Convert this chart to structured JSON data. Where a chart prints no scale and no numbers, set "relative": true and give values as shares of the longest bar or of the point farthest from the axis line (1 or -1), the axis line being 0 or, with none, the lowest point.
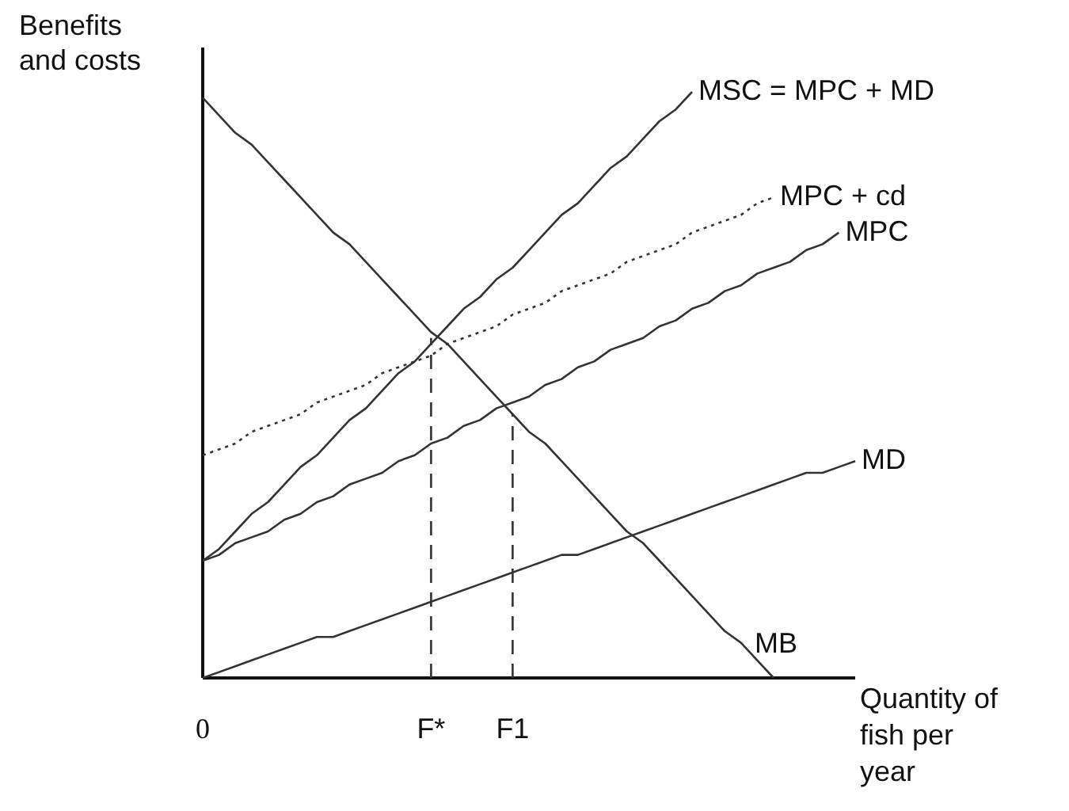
{
  "chart_data": {
    "type": "line",
    "relative": true,
    "xlabel": "Quantity of fish per year",
    "ylabel": "Benefits and costs",
    "categories": [
      "0",
      null,
      null,
      null,
      null,
      null,
      null,
      null,
      null,
      null,
      null,
      null,
      null,
      null,
      "F*",
      null,
      null,
      null,
      null,
      "F1",
      null,
      null,
      null,
      null,
      null,
      null,
      null,
      null,
      null,
      null,
      null,
      null,
      null,
      null,
      null,
      null,
      null,
      null,
      null,
      null,
      null
    ],
    "series": [
      {
        "name": "MB",
        "color": "#333333",
        "values": [
          0.99,
          0.96,
          0.93,
          0.91,
          0.88,
          0.85,
          0.82,
          0.79,
          0.76,
          0.74,
          0.71,
          0.68,
          0.65,
          0.62,
          0.59,
          0.57,
          0.54,
          0.51,
          0.48,
          0.45,
          0.42,
          0.4,
          0.37,
          0.34,
          0.31,
          0.28,
          0.25,
          0.23,
          0.2,
          0.17,
          0.14,
          0.11,
          0.08,
          0.06,
          0.03,
          0,
          null,
          null,
          null,
          null,
          null
        ]
      },
      {
        "name": "MSC = MPC + MD",
        "color": "#333333",
        "values": [
          0.2,
          0.22,
          0.25,
          0.28,
          0.3,
          0.33,
          0.36,
          0.38,
          0.41,
          0.44,
          0.46,
          0.49,
          0.52,
          0.54,
          0.57,
          0.6,
          0.63,
          0.65,
          0.68,
          0.7,
          0.73,
          0.76,
          0.79,
          0.81,
          0.84,
          0.87,
          0.89,
          0.92,
          0.95,
          0.97,
          1,
          null,
          null,
          null,
          null,
          null,
          null,
          null,
          null,
          null,
          null
        ]
      },
      {
        "name": "MPC + cd",
        "color": "#333333",
        "line_style": "dotted",
        "values": [
          0.38,
          0.39,
          0.4,
          0.42,
          0.43,
          0.44,
          0.45,
          0.47,
          0.48,
          0.49,
          0.5,
          0.52,
          0.53,
          0.54,
          0.55,
          0.57,
          0.58,
          0.59,
          0.6,
          0.62,
          0.63,
          0.64,
          0.66,
          0.67,
          0.68,
          0.69,
          0.71,
          0.72,
          0.73,
          0.74,
          0.76,
          0.77,
          0.78,
          0.79,
          0.81,
          0.82,
          null,
          null,
          null,
          null,
          null
        ]
      },
      {
        "name": "MPC",
        "color": "#333333",
        "values": [
          0.2,
          0.21,
          0.23,
          0.24,
          0.25,
          0.27,
          0.28,
          0.3,
          0.31,
          0.33,
          0.34,
          0.35,
          0.37,
          0.38,
          0.4,
          0.41,
          0.43,
          0.44,
          0.46,
          0.47,
          0.48,
          0.5,
          0.51,
          0.53,
          0.54,
          0.56,
          0.57,
          0.58,
          0.6,
          0.61,
          0.63,
          0.64,
          0.66,
          0.67,
          0.69,
          0.7,
          0.71,
          0.73,
          0.74,
          0.76,
          null
        ]
      },
      {
        "name": "MD",
        "color": "#333333",
        "values": [
          0,
          0.01,
          0.02,
          0.03,
          0.04,
          0.05,
          0.06,
          0.07,
          0.07,
          0.08,
          0.09,
          0.1,
          0.11,
          0.12,
          0.13,
          0.14,
          0.15,
          0.16,
          0.17,
          0.18,
          0.19,
          0.2,
          0.21,
          0.21,
          0.22,
          0.23,
          0.24,
          0.25,
          0.26,
          0.27,
          0.28,
          0.29,
          0.3,
          0.31,
          0.32,
          0.33,
          0.34,
          0.35,
          0.35,
          0.36,
          0.37
        ]
      },
      {
        "color": "#333333",
        "line_style": "dashed",
        "x": [
          "F*",
          "F*"
        ],
        "values": [
          0,
          0.58
        ]
      },
      {
        "color": "#333333",
        "line_style": "dashed",
        "x": [
          "F1",
          "F1"
        ],
        "values": [
          0,
          0.45
        ]
      }
    ]
  }
}
